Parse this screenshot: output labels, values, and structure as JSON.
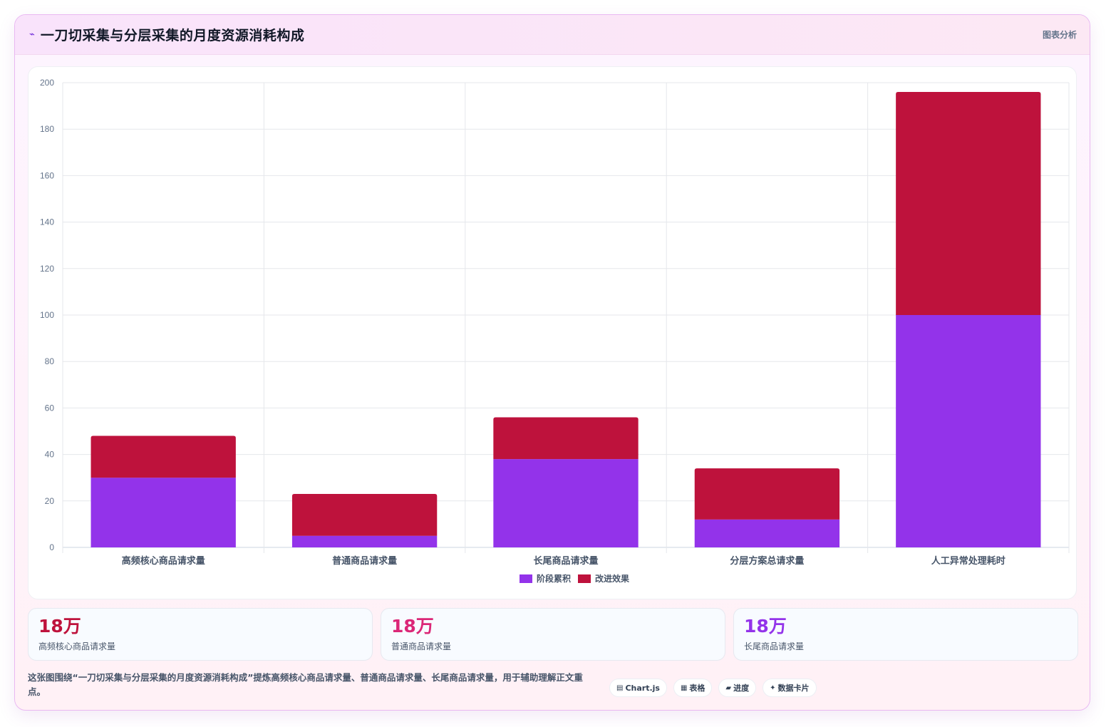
{
  "header": {
    "title": "一刀切采集与分层采集的月度资源消耗构成",
    "tag": "图表分析"
  },
  "chart_data": {
    "type": "bar",
    "stacked": true,
    "categories": [
      "高频核心商品请求量",
      "普通商品请求量",
      "长尾商品请求量",
      "分层方案总请求量",
      "人工异常处理耗时"
    ],
    "series": [
      {
        "name": "阶段累积",
        "color": "#9333ea",
        "values": [
          30,
          5,
          38,
          12,
          100
        ]
      },
      {
        "name": "改进效果",
        "color": "#be123c",
        "values": [
          18,
          18,
          18,
          22,
          96
        ]
      }
    ],
    "ylim": [
      0,
      200
    ],
    "yticks": [
      0,
      20,
      40,
      60,
      80,
      100,
      120,
      140,
      160,
      180,
      200
    ],
    "grid": true,
    "legend_position": "bottom"
  },
  "stats": [
    {
      "value": "18万",
      "label": "高频核心商品请求量",
      "color": "#be123c"
    },
    {
      "value": "18万",
      "label": "普通商品请求量",
      "color": "#db2777"
    },
    {
      "value": "18万",
      "label": "长尾商品请求量",
      "color": "#9333ea"
    }
  ],
  "footer": {
    "description": "这张图围绕“一刀切采集与分层采集的月度资源消耗构成”提炼高频核心商品请求量、普通商品请求量、长尾商品请求量，用于辅助理解正文重点。",
    "chips": [
      {
        "icon": "chart-icon",
        "glyph": "▤",
        "label": "Chart.js"
      },
      {
        "icon": "table-icon",
        "glyph": "▦",
        "label": "表格"
      },
      {
        "icon": "progress-icon",
        "glyph": "▰",
        "label": "进度"
      },
      {
        "icon": "sparkle-icon",
        "glyph": "✦",
        "label": "数据卡片"
      }
    ]
  }
}
